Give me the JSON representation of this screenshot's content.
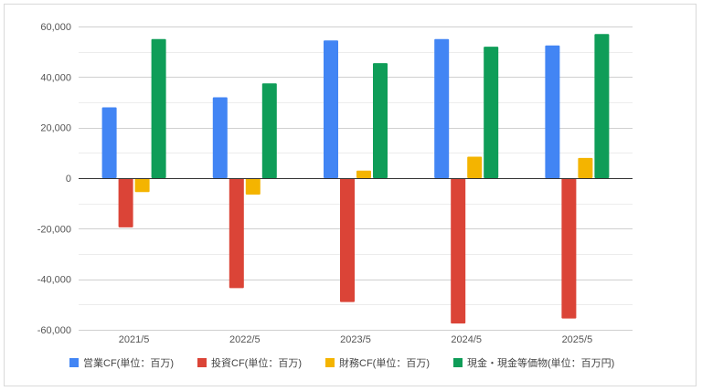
{
  "chart_data": {
    "type": "bar",
    "categories": [
      "2021/5",
      "2022/5",
      "2023/5",
      "2024/5",
      "2025/5"
    ],
    "series": [
      {
        "name": "営業CF(単位：百万)",
        "color": "#4285f4",
        "values": [
          28000,
          32000,
          54500,
          55000,
          52500
        ]
      },
      {
        "name": "投資CF(単位：百万)",
        "color": "#db4437",
        "values": [
          -19500,
          -43500,
          -49000,
          -57500,
          -55500
        ]
      },
      {
        "name": "財務CF(単位：百万)",
        "color": "#f4b400",
        "values": [
          -5500,
          -6500,
          3000,
          8500,
          8000
        ]
      },
      {
        "name": "現金・現金等価物(単位：百万円)",
        "color": "#0f9d58",
        "values": [
          55000,
          37500,
          45500,
          52000,
          57000
        ]
      }
    ],
    "ylim": [
      -60000,
      60000
    ],
    "yticks": [
      "60,000",
      "40,000",
      "20,000",
      "0",
      "-20,000",
      "-40,000",
      "-60,000"
    ],
    "ytick_values": [
      60000,
      40000,
      20000,
      0,
      -20000,
      -40000,
      -60000
    ],
    "grid": true,
    "legend_position": "bottom",
    "title": "",
    "xlabel": "",
    "ylabel": ""
  }
}
